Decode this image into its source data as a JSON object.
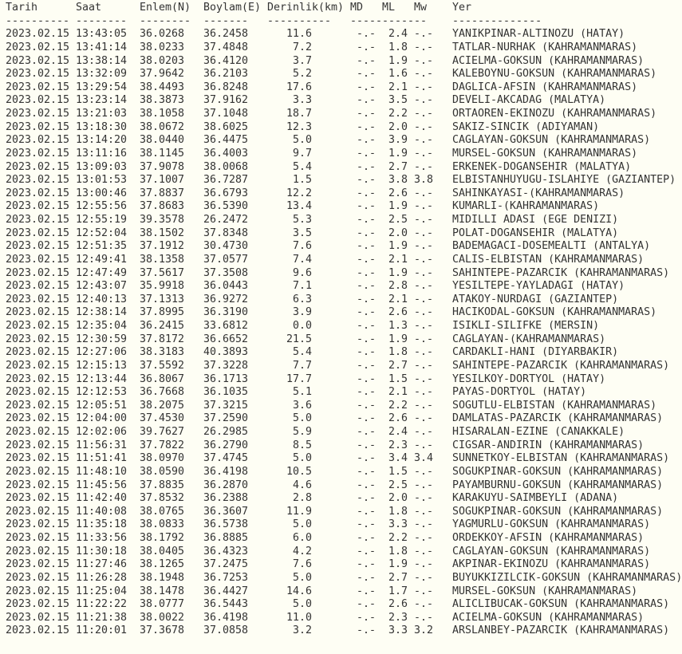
{
  "header": {
    "columns": [
      "Tarih",
      "Saat",
      "Enlem(N)",
      "Boylam(E)",
      "Derinlik(km)",
      "MD",
      "ML",
      "Mw",
      "Yer"
    ],
    "separators": [
      "----------",
      "--------",
      "--------",
      "-------",
      "----------",
      "------------",
      "--------------"
    ]
  },
  "rows": [
    [
      "2023.02.15",
      "13:43:05",
      "36.0268",
      "36.2458",
      "11.6",
      "-.-",
      "2.4",
      "-.-",
      "YANIKPINAR-ALTINOZU (HATAY)"
    ],
    [
      "2023.02.15",
      "13:41:14",
      "38.0233",
      "37.4848",
      "7.2",
      "-.-",
      "1.8",
      "-.-",
      "TATLAR-NURHAK (KAHRAMANMARAS)"
    ],
    [
      "2023.02.15",
      "13:38:14",
      "38.0203",
      "36.4120",
      "3.7",
      "-.-",
      "1.9",
      "-.-",
      "ACIELMA-GOKSUN (KAHRAMANMARAS)"
    ],
    [
      "2023.02.15",
      "13:32:09",
      "37.9642",
      "36.2103",
      "5.2",
      "-.-",
      "1.6",
      "-.-",
      "KALEBOYNU-GOKSUN (KAHRAMANMARAS)"
    ],
    [
      "2023.02.15",
      "13:29:54",
      "38.4493",
      "36.8248",
      "17.6",
      "-.-",
      "2.1",
      "-.-",
      "DAGLICA-AFSIN (KAHRAMANMARAS)"
    ],
    [
      "2023.02.15",
      "13:23:14",
      "38.3873",
      "37.9162",
      "3.3",
      "-.-",
      "3.5",
      "-.-",
      "DEVELI-AKCADAG (MALATYA)"
    ],
    [
      "2023.02.15",
      "13:21:03",
      "38.1058",
      "37.1048",
      "18.7",
      "-.-",
      "2.2",
      "-.-",
      "ORTAOREN-EKINOZU (KAHRAMANMARAS)"
    ],
    [
      "2023.02.15",
      "13:18:30",
      "38.0672",
      "38.6025",
      "12.3",
      "-.-",
      "2.0",
      "-.-",
      "SAKIZ-SINCIK (ADIYAMAN)"
    ],
    [
      "2023.02.15",
      "13:14:20",
      "38.0440",
      "36.4475",
      "5.0",
      "-.-",
      "3.9",
      "-.-",
      "CAGLAYAN-GOKSUN (KAHRAMANMARAS)"
    ],
    [
      "2023.02.15",
      "13:11:16",
      "38.1145",
      "36.4003",
      "9.7",
      "-.-",
      "1.9",
      "-.-",
      "MURSEL-GOKSUN (KAHRAMANMARAS)"
    ],
    [
      "2023.02.15",
      "13:09:03",
      "37.9078",
      "38.0068",
      "5.4",
      "-.-",
      "2.7",
      "-.-",
      "ERKENEK-DOGANSEHIR (MALATYA)"
    ],
    [
      "2023.02.15",
      "13:01:53",
      "37.1007",
      "36.7287",
      "1.5",
      "-.-",
      "3.8",
      "3.8",
      "ELBISTANHUYUGU-ISLAHIYE (GAZIANTEP)"
    ],
    [
      "2023.02.15",
      "13:00:46",
      "37.8837",
      "36.6793",
      "12.2",
      "-.-",
      "2.6",
      "-.-",
      "SAHINKAYASI-(KAHRAMANMARAS)"
    ],
    [
      "2023.02.15",
      "12:55:56",
      "37.8683",
      "36.5390",
      "13.4",
      "-.-",
      "1.9",
      "-.-",
      "KUMARLI-(KAHRAMANMARAS)"
    ],
    [
      "2023.02.15",
      "12:55:19",
      "39.3578",
      "26.2472",
      "5.3",
      "-.-",
      "2.5",
      "-.-",
      "MIDILLI ADASI (EGE DENIZI)"
    ],
    [
      "2023.02.15",
      "12:52:04",
      "38.1502",
      "37.8348",
      "3.5",
      "-.-",
      "2.0",
      "-.-",
      "POLAT-DOGANSEHIR (MALATYA)"
    ],
    [
      "2023.02.15",
      "12:51:35",
      "37.1912",
      "30.4730",
      "7.6",
      "-.-",
      "1.9",
      "-.-",
      "BADEMAGACI-DOSEMEALTI (ANTALYA)"
    ],
    [
      "2023.02.15",
      "12:49:41",
      "38.1358",
      "37.0577",
      "7.4",
      "-.-",
      "2.1",
      "-.-",
      "CALIS-ELBISTAN (KAHRAMANMARAS)"
    ],
    [
      "2023.02.15",
      "12:47:49",
      "37.5617",
      "37.3508",
      "9.6",
      "-.-",
      "1.9",
      "-.-",
      "SAHINTEPE-PAZARCIK (KAHRAMANMARAS)"
    ],
    [
      "2023.02.15",
      "12:43:07",
      "35.9918",
      "36.0443",
      "7.1",
      "-.-",
      "2.8",
      "-.-",
      "YESILTEPE-YAYLADAGI (HATAY)"
    ],
    [
      "2023.02.15",
      "12:40:13",
      "37.1313",
      "36.9272",
      "6.3",
      "-.-",
      "2.1",
      "-.-",
      "ATAKOY-NURDAGI (GAZIANTEP)"
    ],
    [
      "2023.02.15",
      "12:38:14",
      "37.8995",
      "36.3190",
      "3.9",
      "-.-",
      "2.6",
      "-.-",
      "HACIKODAL-GOKSUN (KAHRAMANMARAS)"
    ],
    [
      "2023.02.15",
      "12:35:04",
      "36.2415",
      "33.6812",
      "0.0",
      "-.-",
      "1.3",
      "-.-",
      "ISIKLI-SILIFKE (MERSIN)"
    ],
    [
      "2023.02.15",
      "12:30:59",
      "37.8172",
      "36.6652",
      "21.5",
      "-.-",
      "1.9",
      "-.-",
      "CAGLAYAN-(KAHRAMANMARAS)"
    ],
    [
      "2023.02.15",
      "12:27:06",
      "38.3183",
      "40.3893",
      "5.4",
      "-.-",
      "1.8",
      "-.-",
      "CARDAKLI-HANI (DIYARBAKIR)"
    ],
    [
      "2023.02.15",
      "12:15:13",
      "37.5592",
      "37.3228",
      "7.7",
      "-.-",
      "2.7",
      "-.-",
      "SAHINTEPE-PAZARCIK (KAHRAMANMARAS)"
    ],
    [
      "2023.02.15",
      "12:13:44",
      "36.8067",
      "36.1713",
      "17.7",
      "-.-",
      "1.5",
      "-.-",
      "YESILKOY-DORTYOL (HATAY)"
    ],
    [
      "2023.02.15",
      "12:12:53",
      "36.7668",
      "36.1035",
      "5.1",
      "-.-",
      "2.1",
      "-.-",
      "PAYAS-DORTYOL (HATAY)"
    ],
    [
      "2023.02.15",
      "12:05:51",
      "38.2075",
      "37.3215",
      "3.6",
      "-.-",
      "2.2",
      "-.-",
      "SOGUTLU-ELBISTAN (KAHRAMANMARAS)"
    ],
    [
      "2023.02.15",
      "12:04:00",
      "37.4530",
      "37.2590",
      "5.0",
      "-.-",
      "2.6",
      "-.-",
      "DAMLATAS-PAZARCIK (KAHRAMANMARAS)"
    ],
    [
      "2023.02.15",
      "12:02:06",
      "39.7627",
      "26.2985",
      "5.9",
      "-.-",
      "2.4",
      "-.-",
      "HISARALAN-EZINE (CANAKKALE)"
    ],
    [
      "2023.02.15",
      "11:56:31",
      "37.7822",
      "36.2790",
      "8.5",
      "-.-",
      "2.3",
      "-.-",
      "CIGSAR-ANDIRIN (KAHRAMANMARAS)"
    ],
    [
      "2023.02.15",
      "11:51:41",
      "38.0970",
      "37.4745",
      "5.0",
      "-.-",
      "3.4",
      "3.4",
      "SUNNETKOY-ELBISTAN (KAHRAMANMARAS)"
    ],
    [
      "2023.02.15",
      "11:48:10",
      "38.0590",
      "36.4198",
      "10.5",
      "-.-",
      "1.5",
      "-.-",
      "SOGUKPINAR-GOKSUN (KAHRAMANMARAS)"
    ],
    [
      "2023.02.15",
      "11:45:56",
      "37.8835",
      "36.2870",
      "4.6",
      "-.-",
      "2.5",
      "-.-",
      "PAYAMBURNU-GOKSUN (KAHRAMANMARAS)"
    ],
    [
      "2023.02.15",
      "11:42:40",
      "37.8532",
      "36.2388",
      "2.8",
      "-.-",
      "2.0",
      "-.-",
      "KARAKUYU-SAIMBEYLI (ADANA)"
    ],
    [
      "2023.02.15",
      "11:40:08",
      "38.0765",
      "36.3607",
      "11.9",
      "-.-",
      "1.8",
      "-.-",
      "SOGUKPINAR-GOKSUN (KAHRAMANMARAS)"
    ],
    [
      "2023.02.15",
      "11:35:18",
      "38.0833",
      "36.5738",
      "5.0",
      "-.-",
      "3.3",
      "-.-",
      "YAGMURLU-GOKSUN (KAHRAMANMARAS)"
    ],
    [
      "2023.02.15",
      "11:33:56",
      "38.1792",
      "36.8885",
      "6.0",
      "-.-",
      "2.2",
      "-.-",
      "ORDEKKOY-AFSIN (KAHRAMANMARAS)"
    ],
    [
      "2023.02.15",
      "11:30:18",
      "38.0405",
      "36.4323",
      "4.2",
      "-.-",
      "1.8",
      "-.-",
      "CAGLAYAN-GOKSUN (KAHRAMANMARAS)"
    ],
    [
      "2023.02.15",
      "11:27:46",
      "38.1265",
      "37.2475",
      "7.6",
      "-.-",
      "1.9",
      "-.-",
      "AKPINAR-EKINOZU (KAHRAMANMARAS)"
    ],
    [
      "2023.02.15",
      "11:26:28",
      "38.1948",
      "36.7253",
      "5.0",
      "-.-",
      "2.7",
      "-.-",
      "BUYUKKIZILCIK-GOKSUN (KAHRAMANMARAS)"
    ],
    [
      "2023.02.15",
      "11:25:04",
      "38.1478",
      "36.4427",
      "14.6",
      "-.-",
      "1.7",
      "-.-",
      "MURSEL-GOKSUN (KAHRAMANMARAS)"
    ],
    [
      "2023.02.15",
      "11:22:22",
      "38.0777",
      "36.5443",
      "5.0",
      "-.-",
      "2.6",
      "-.-",
      "ALICLIBUCAK-GOKSUN (KAHRAMANMARAS)"
    ],
    [
      "2023.02.15",
      "11:21:38",
      "38.0022",
      "36.4198",
      "11.0",
      "-.-",
      "2.3",
      "-.-",
      "ACIELMA-GOKSUN (KAHRAMANMARAS)"
    ],
    [
      "2023.02.15",
      "11:20:01",
      "37.3678",
      "37.0858",
      "3.2",
      "-.-",
      "3.3",
      "3.2",
      "ARSLANBEY-PAZARCIK (KAHRAMANMARAS)"
    ]
  ]
}
